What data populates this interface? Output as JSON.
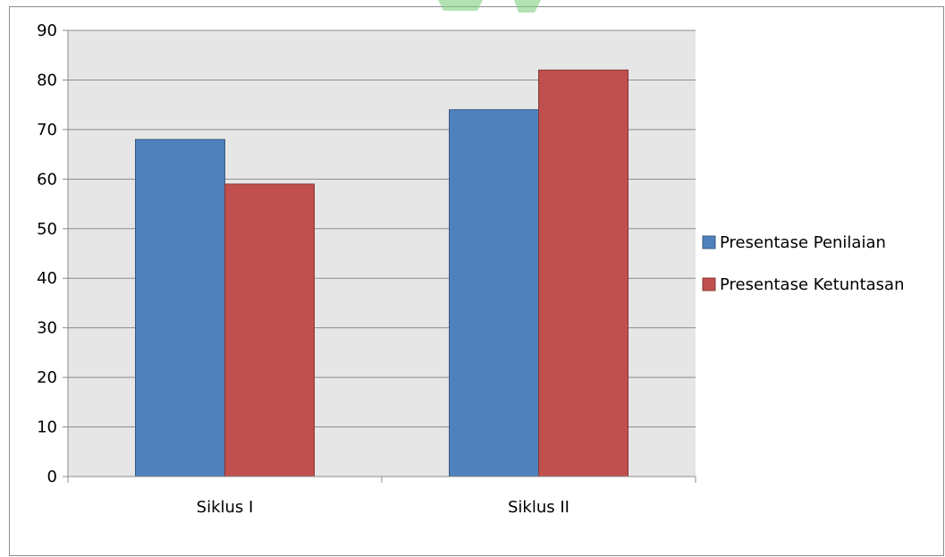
{
  "chart_data": {
    "type": "bar",
    "categories": [
      "Siklus I",
      "Siklus II"
    ],
    "series": [
      {
        "name": "Presentase Penilaian",
        "values": [
          68,
          74
        ],
        "color": "#4f81bd"
      },
      {
        "name": "Presentase Ketuntasan",
        "values": [
          59,
          82
        ],
        "color": "#c0504d"
      }
    ],
    "ylim": [
      0,
      90
    ],
    "yticks": [
      0,
      10,
      20,
      30,
      40,
      50,
      60,
      70,
      80,
      90
    ],
    "grid": true,
    "legend_position": "right",
    "plot_background": "#e6e6e6"
  },
  "watermark_color": "#7fcf7f"
}
